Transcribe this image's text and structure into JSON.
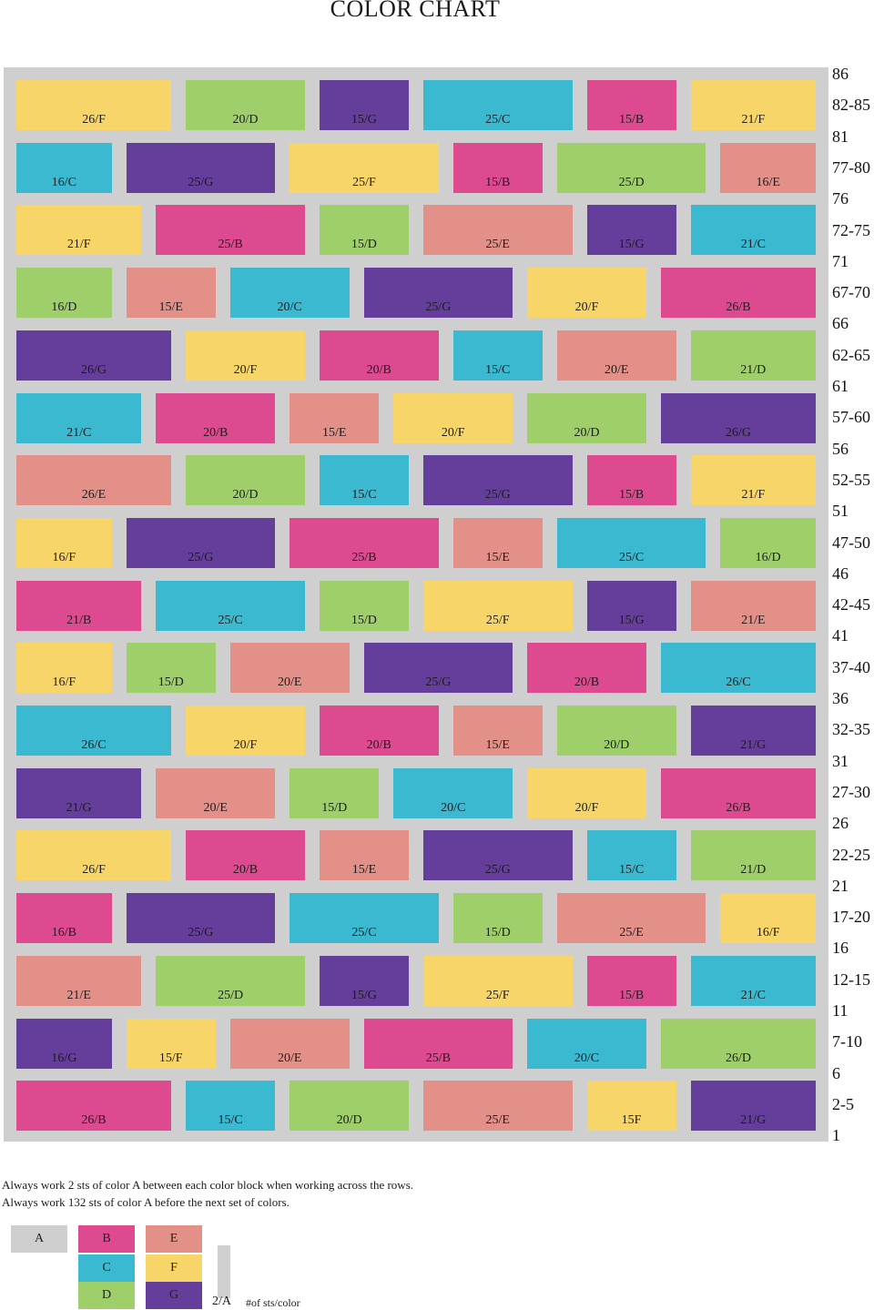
{
  "title": "COLOR CHART",
  "colors": {
    "A": "#cfcfcf",
    "B": "#de4a8f",
    "C": "#3bb9d1",
    "D": "#9ecf6b",
    "E": "#e39088",
    "F": "#f8d568",
    "G": "#643e9a"
  },
  "rows": [
    {
      "blocks": [
        "26/F",
        "20/D",
        "15/G",
        "25/C",
        "15/B",
        "21/F"
      ]
    },
    {
      "blocks": [
        "16/C",
        "25/G",
        "25/F",
        "15/B",
        "25/D",
        "16/E"
      ]
    },
    {
      "blocks": [
        "21/F",
        "25/B",
        "15/D",
        "25/E",
        "15/G",
        "21/C"
      ]
    },
    {
      "blocks": [
        "16/D",
        "15/E",
        "20/C",
        "25/G",
        "20/F",
        "26/B"
      ]
    },
    {
      "blocks": [
        "26/G",
        "20/F",
        "20/B",
        "15/C",
        "20/E",
        "21/D"
      ]
    },
    {
      "blocks": [
        "21/C",
        "20/B",
        "15/E",
        "20/F",
        "20/D",
        "26/G"
      ]
    },
    {
      "blocks": [
        "26/E",
        "20/D",
        "15/C",
        "25/G",
        "15/B",
        "21/F"
      ]
    },
    {
      "blocks": [
        "16/F",
        "25/G",
        "25/B",
        "15/E",
        "25/C",
        "16/D"
      ]
    },
    {
      "blocks": [
        "21/B",
        "25/C",
        "15/D",
        "25/F",
        "15/G",
        "21/E"
      ]
    },
    {
      "blocks": [
        "16/F",
        "15/D",
        "20/E",
        "25/G",
        "20/B",
        "26/C"
      ]
    },
    {
      "blocks": [
        "26/C",
        "20/F",
        "20/B",
        "15/E",
        "20/D",
        "21/G"
      ]
    },
    {
      "blocks": [
        "21/G",
        "20/E",
        "15/D",
        "20/C",
        "20/F",
        "26/B"
      ]
    },
    {
      "blocks": [
        "26/F",
        "20/B",
        "15/E",
        "25/G",
        "15/C",
        "21/D"
      ]
    },
    {
      "blocks": [
        "16/B",
        "25/G",
        "25/C",
        "15/D",
        "25/E",
        "16/F"
      ]
    },
    {
      "blocks": [
        "21/E",
        "25/D",
        "15/G",
        "25/F",
        "15/B",
        "21/C"
      ]
    },
    {
      "blocks": [
        "16/G",
        "15/F",
        "20/E",
        "25/B",
        "20/C",
        "26/D"
      ]
    },
    {
      "blocks": [
        "26/B",
        "15/C",
        "20/D",
        "25/E",
        "15F",
        "21/G"
      ]
    }
  ],
  "row_labels": [
    "86",
    "82-85",
    "81",
    "77-80",
    "76",
    "72-75",
    "71",
    "67-70",
    "66",
    "62-65",
    "61",
    "57-60",
    "56",
    "52-55",
    "51",
    "47-50",
    "46",
    "42-45",
    "41",
    "37-40",
    "36",
    "32-35",
    "31",
    "27-30",
    "26",
    "22-25",
    "21",
    "17-20",
    "16",
    "12-15",
    "11",
    "7-10",
    "6",
    "2-5",
    "1"
  ],
  "instructions": [
    "Always work 2 sts of color A between each color block when working across the rows.",
    "Always work 132 sts of color A before the next set of colors."
  ],
  "legend": {
    "keys": [
      {
        "label": "A",
        "color": "#cfcfcf"
      },
      {
        "label": "B",
        "color": "#de4a8f"
      },
      {
        "label": "E",
        "color": "#e39088"
      },
      {
        "label": "C",
        "color": "#3bb9d1"
      },
      {
        "label": "F",
        "color": "#f8d568"
      },
      {
        "label": "D",
        "color": "#9ecf6b"
      },
      {
        "label": "G",
        "color": "#643e9a"
      }
    ],
    "count_label": "2/A",
    "note": "#of sts/color"
  }
}
